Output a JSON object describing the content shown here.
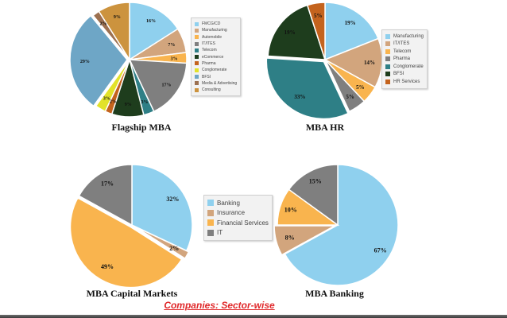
{
  "main_title": "Companies: Sector-wise",
  "chart_data": [
    {
      "type": "pie",
      "title": "Flagship MBA",
      "legend_position": "right",
      "categories": [
        "FMCG/CD",
        "Manufacturing",
        "Automobile",
        "IT/ITES",
        "Telecom",
        "eCommerce",
        "Pharma",
        "Conglomerate",
        "BFSI",
        "Media & Advertising",
        "Consulting"
      ],
      "values": [
        16,
        7,
        3,
        17,
        3,
        9,
        2,
        3,
        29,
        2,
        9
      ],
      "labels": [
        "16%",
        "7%",
        "3%",
        "17%",
        "3%",
        "9%",
        "2%",
        "3%",
        "29%",
        "2%",
        "9%"
      ],
      "colors": [
        "#8fd0ee",
        "#d2a57d",
        "#f9b44e",
        "#7f7f7f",
        "#2e7f86",
        "#1e3d1d",
        "#c4631d",
        "#e2e22a",
        "#6ea6c6",
        "#9c7050",
        "#cc933e"
      ]
    },
    {
      "type": "pie",
      "title": "MBA HR",
      "legend_position": "right",
      "categories": [
        "Manufacturing",
        "IT/ITES",
        "Telecom",
        "Pharma",
        "Conglomerate",
        "BFSI",
        "HR Services"
      ],
      "values": [
        19,
        14,
        5,
        5,
        33,
        19,
        5
      ],
      "labels": [
        "19%",
        "14%",
        "5%",
        "5%",
        "33%",
        "19%",
        "5%"
      ],
      "colors": [
        "#8fd0ee",
        "#d2a57d",
        "#f9b44e",
        "#7f7f7f",
        "#2e7f86",
        "#1e3d1d",
        "#c4631d"
      ]
    },
    {
      "type": "pie",
      "title": "MBA Capital Markets",
      "legend_position": "right",
      "categories": [
        "Banking",
        "Insurance",
        "Financial Services",
        "IT"
      ],
      "values": [
        32,
        2,
        49,
        17
      ],
      "labels": [
        "32%",
        "2%",
        "49%",
        "17%"
      ],
      "colors": [
        "#8fd0ee",
        "#d2a57d",
        "#f9b44e",
        "#7f7f7f"
      ]
    },
    {
      "type": "pie",
      "title": "MBA Banking",
      "legend_position": "none",
      "categories": [
        "Banking",
        "Insurance",
        "Financial Services",
        "IT"
      ],
      "values": [
        67,
        8,
        10,
        15
      ],
      "labels": [
        "67%",
        "8%",
        "10%",
        "15%"
      ],
      "colors": [
        "#8fd0ee",
        "#d2a57d",
        "#f9b44e",
        "#7f7f7f"
      ]
    }
  ]
}
